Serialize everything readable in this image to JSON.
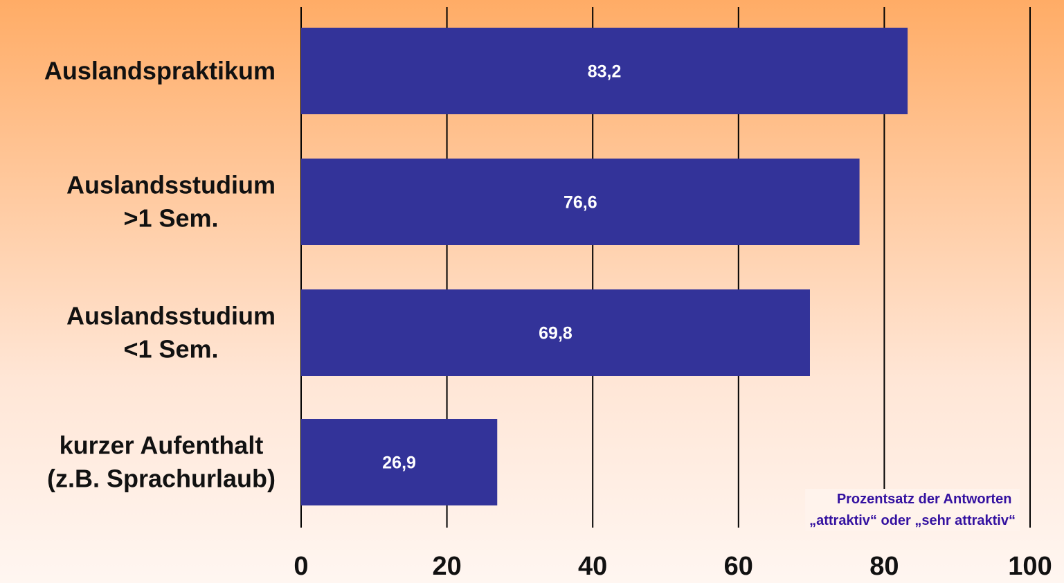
{
  "chart_data": {
    "type": "bar",
    "orientation": "horizontal",
    "categories": [
      [
        "Auslandspraktikum"
      ],
      [
        "Auslandsstudium",
        ">1 Sem."
      ],
      [
        "Auslandsstudium",
        "<1 Sem."
      ],
      [
        "kurzer Aufenthalt",
        "(z.B. Sprachurlaub)"
      ]
    ],
    "values": [
      83.2,
      76.6,
      69.8,
      26.9
    ],
    "value_labels": [
      "83,2",
      "76,6",
      "69,8",
      "26,9"
    ],
    "xlim": [
      0,
      100
    ],
    "x_ticks": [
      0,
      20,
      40,
      60,
      80,
      100
    ],
    "x_tick_labels": [
      "0",
      "20",
      "40",
      "60",
      "80",
      "100"
    ],
    "grid": "vertical",
    "title": "",
    "xlabel": "",
    "ylabel": "",
    "annotation": {
      "lines": [
        "Prozentsatz der Antworten",
        "„attraktiv“ oder „sehr attraktiv“"
      ],
      "position": "bottom-right",
      "color": "#3311A0"
    },
    "colors": {
      "bar": "#333399",
      "value_label": "#ffffff",
      "gridline": "#000000",
      "text": "#111111"
    }
  }
}
